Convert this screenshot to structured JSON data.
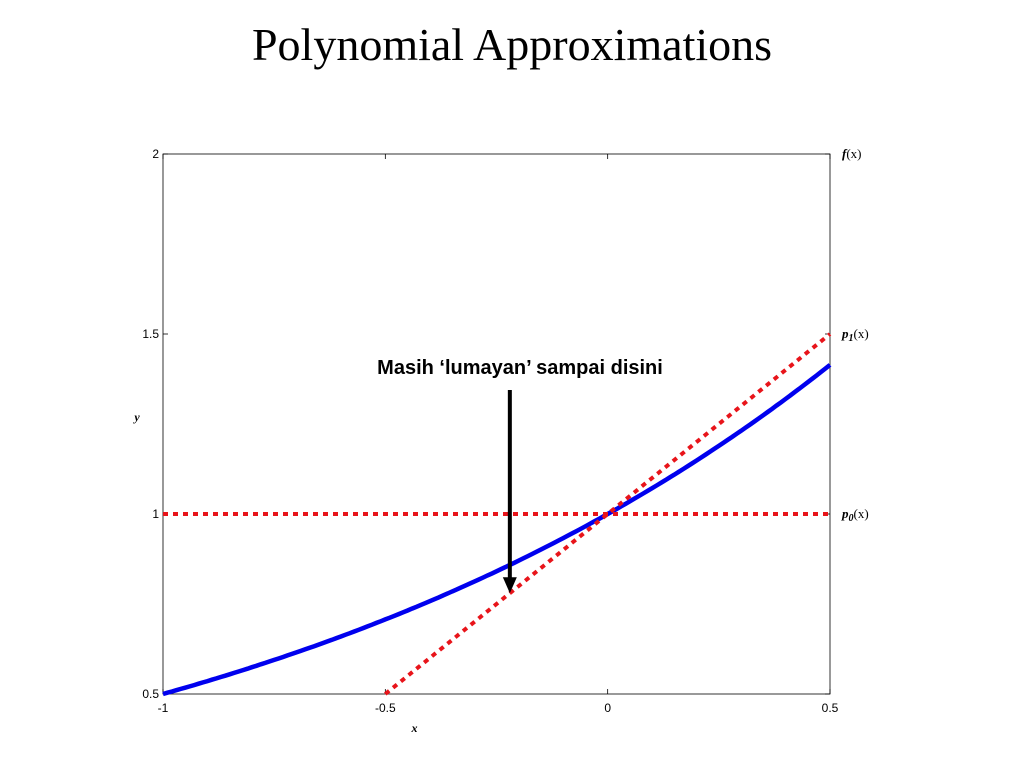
{
  "slide": {
    "title": "Polynomial Approximations"
  },
  "chart_data": {
    "type": "line",
    "xlabel": "x",
    "ylabel": "y",
    "xlim": [
      -1,
      0.5
    ],
    "ylim": [
      0.5,
      2
    ],
    "xticks": [
      "-1",
      "-0.5",
      "0",
      "0.5"
    ],
    "yticks": [
      "0.5",
      "1",
      "1.5",
      "2"
    ],
    "grid": false,
    "series": [
      {
        "name": "f(x)",
        "label_fn": "f",
        "label_sub": "",
        "label_arg": "(x)",
        "style": "solid",
        "color": "#0000ee",
        "x": [
          -1,
          -0.9,
          -0.8,
          -0.7,
          -0.6,
          -0.5,
          -0.4,
          -0.3,
          -0.2,
          -0.1,
          0,
          0.1,
          0.2,
          0.3,
          0.4,
          0.5
        ],
        "y": [
          0.5,
          0.536,
          0.574,
          0.616,
          0.66,
          0.707,
          0.758,
          0.812,
          0.871,
          0.933,
          1.0,
          1.072,
          1.149,
          1.231,
          1.32,
          1.414
        ]
      },
      {
        "name": "p1(x)",
        "label_fn": "p",
        "label_sub": "1",
        "label_arg": "(x)",
        "style": "dotted",
        "color": "#e8141a",
        "x": [
          -0.5,
          0.5
        ],
        "y": [
          0.5,
          1.5
        ]
      },
      {
        "name": "p0(x)",
        "label_fn": "p",
        "label_sub": "0",
        "label_arg": "(x)",
        "style": "dotted",
        "color": "#e8141a",
        "x": [
          -1,
          0.5
        ],
        "y": [
          1,
          1
        ]
      }
    ],
    "annotations": [
      {
        "text": "Masih ‘lumayan’ sampai disini",
        "arrow_to": {
          "x": -0.22,
          "y": 0.78
        }
      }
    ]
  }
}
